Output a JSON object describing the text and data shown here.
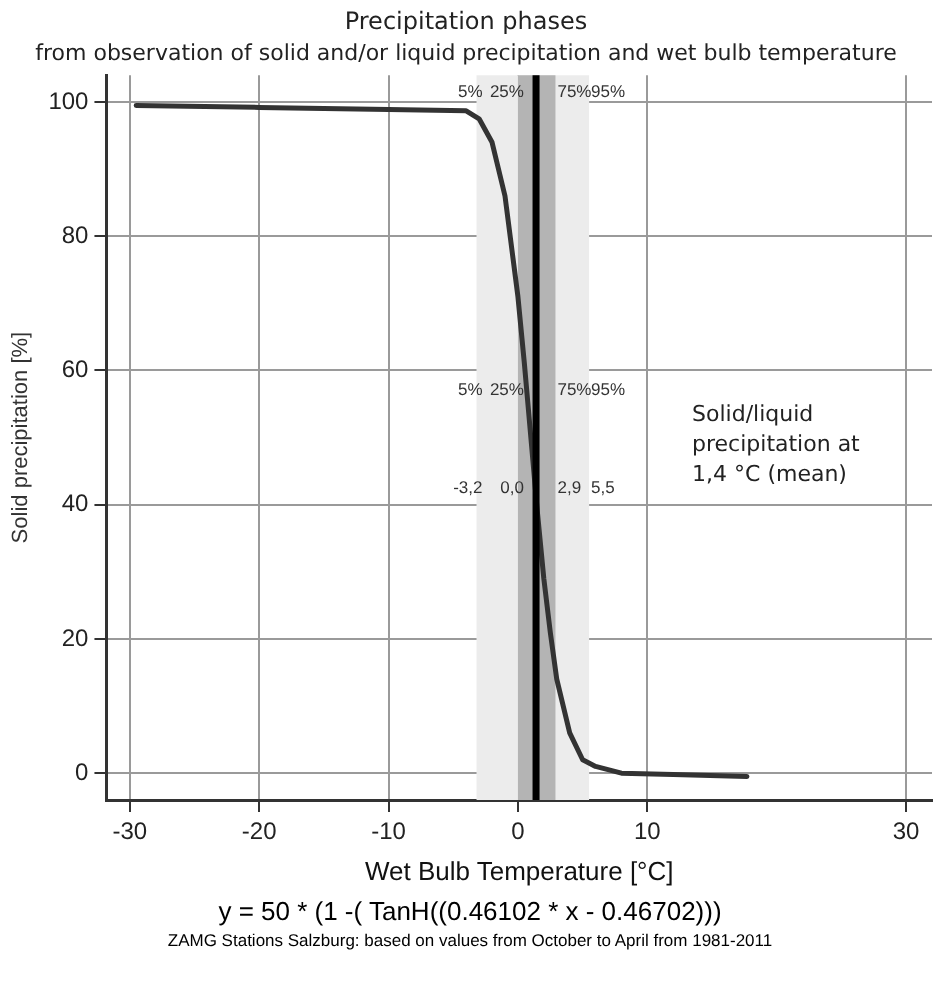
{
  "chart_data": {
    "type": "line",
    "title": "Precipitation phases",
    "subtitle": "from observation of solid and/or liquid precipitation and wet bulb temperature",
    "xlabel": "Wet Bulb Temperature [°C]",
    "ylabel": "Solid precipitation [%]",
    "x": [
      -29.5,
      -20,
      -10,
      -4,
      -3,
      -2,
      -1,
      0,
      0.5,
      1,
      1.5,
      2,
      2.5,
      3,
      4,
      5,
      6,
      8,
      12,
      17.7
    ],
    "series": [
      {
        "color": "#333333",
        "values": [
          99.5,
          99.2,
          98.9,
          98.7,
          97.5,
          94,
          86,
          71,
          61,
          50,
          39,
          29,
          21,
          14,
          6,
          2,
          1,
          0,
          -0.2,
          -0.5
        ]
      }
    ],
    "xlim": [
      -31.8,
      32
    ],
    "ylim": [
      -4,
      104
    ],
    "xticks": [
      -30,
      -20,
      -10,
      0,
      10,
      30
    ],
    "yticks": [
      0,
      20,
      40,
      60,
      80,
      100
    ],
    "grid": true,
    "legend": false,
    "marker": "none",
    "line_style": "solid",
    "bands": [
      {
        "axis": "x",
        "from": -3.2,
        "to": 5.5,
        "color": "#ececec"
      },
      {
        "axis": "x",
        "from": 0.0,
        "to": 2.9,
        "color": "#b4b4b4"
      }
    ],
    "ref_lines": [
      {
        "axis": "x",
        "value": 1.4,
        "label": "Solid/liquid precipitation at 1,4 °C (mean)",
        "color": "#000000"
      }
    ],
    "annotations": [
      {
        "text": "5%",
        "x": -3.2,
        "y": 101.5
      },
      {
        "text": "25%",
        "x": 0.0,
        "y": 101.5
      },
      {
        "text": "75%",
        "x": 2.9,
        "y": 101.5
      },
      {
        "text": "95%",
        "x": 5.5,
        "y": 101.5
      },
      {
        "text": "5%",
        "x": -3.2,
        "y": 57
      },
      {
        "text": "25%",
        "x": 0.0,
        "y": 57
      },
      {
        "text": "75%",
        "x": 2.9,
        "y": 57
      },
      {
        "text": "95%",
        "x": 5.5,
        "y": 57
      },
      {
        "text": "-3,2",
        "x": -3.2,
        "y": 42.5
      },
      {
        "text": "0,0",
        "x": 0.0,
        "y": 42.5
      },
      {
        "text": "2,9",
        "x": 2.9,
        "y": 42.5
      },
      {
        "text": "5,5",
        "x": 5.5,
        "y": 42.5
      },
      "y = 50 * (1 -( TanH((0.46102 * x - 0.46702)))",
      "ZAMG Stations Salzburg: based on values from October to April from 1981-2011"
    ]
  }
}
